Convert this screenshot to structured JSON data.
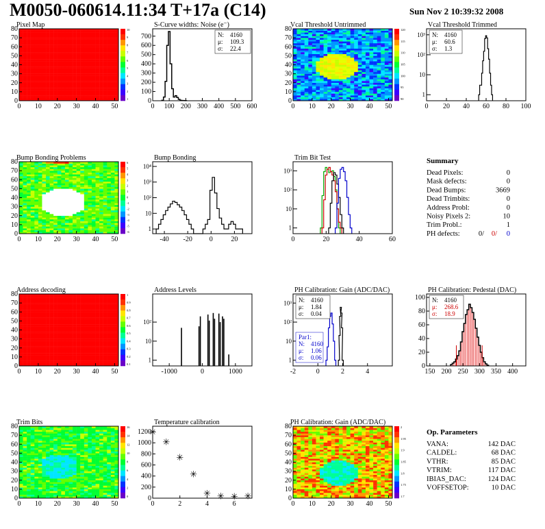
{
  "header": {
    "title": "M0050-060614.11:34 T+17a (C14)",
    "date": "Sun Nov  2 10:39:32 2008"
  },
  "colors": {
    "line": "#000000",
    "blue": "#0000cc",
    "red": "#cc0000",
    "green": "#00aa00"
  },
  "chart_data": [
    {
      "id": "pixel-map",
      "type": "heatmap",
      "title": "Pixel Map",
      "xticks": [
        0,
        10,
        20,
        30,
        40,
        50
      ],
      "yticks": [
        0,
        10,
        20,
        30,
        40,
        50,
        60,
        70,
        80
      ],
      "palette": "rainbow",
      "uniform_color": "red",
      "zmax": "10",
      "zticks": [
        "10",
        "9",
        "8",
        "7",
        "6",
        "5",
        "4",
        "3",
        "2",
        "1"
      ]
    },
    {
      "id": "scurve",
      "type": "histogram",
      "title": "S-Curve widths: Noise (e⁻)",
      "xticks": [
        0,
        100,
        200,
        300,
        400,
        500,
        600
      ],
      "xlim": [
        0,
        600
      ],
      "yticks": [
        0,
        100,
        200,
        300,
        400,
        500,
        600,
        700
      ],
      "ylim": [
        0,
        780
      ],
      "stats": [
        {
          "label": "N:",
          "value": "4160"
        },
        {
          "label": "μ:",
          "value": "109.3"
        },
        {
          "label": "σ:",
          "value": "22.4"
        }
      ],
      "x": [
        60,
        70,
        80,
        90,
        100,
        110,
        120,
        130,
        140,
        150,
        160,
        170,
        180,
        190,
        200
      ],
      "y": [
        5,
        40,
        210,
        600,
        750,
        400,
        130,
        40,
        55,
        35,
        15,
        5,
        3,
        2,
        1
      ]
    },
    {
      "id": "vcal-untrimmed",
      "type": "heatmap",
      "title": "Vcal Threshold Untrimmed",
      "xticks": [
        0,
        10,
        20,
        30,
        40,
        50
      ],
      "yticks": [
        0,
        10,
        20,
        30,
        40,
        50,
        60,
        70,
        80
      ],
      "zticks": [
        "120",
        "115",
        "110",
        "105",
        "100",
        "95",
        "90"
      ]
    },
    {
      "id": "vcal-trimmed",
      "type": "histogram",
      "title": "Vcal Threshold Trimmed",
      "log": true,
      "xticks": [
        0,
        20,
        40,
        60,
        80,
        100
      ],
      "xlim": [
        0,
        100
      ],
      "yticks": [
        "1",
        "10",
        "10²",
        "10³"
      ],
      "ylim": [
        0.5,
        2000
      ],
      "stats": [
        {
          "label": "N:",
          "value": "4160"
        },
        {
          "label": "μ:",
          "value": "60.6"
        },
        {
          "label": "σ:",
          "value": "1.3"
        }
      ],
      "x": [
        53,
        54,
        55,
        56,
        57,
        58,
        59,
        60,
        61,
        62,
        63,
        64,
        65,
        66
      ],
      "y": [
        1,
        3,
        3,
        12,
        50,
        150,
        650,
        900,
        700,
        200,
        60,
        12,
        3,
        1
      ]
    },
    {
      "id": "bump-map",
      "type": "heatmap",
      "title": "Bump Bonding Problems",
      "xticks": [
        0,
        10,
        20,
        30,
        40,
        50
      ],
      "yticks": [
        0,
        10,
        20,
        30,
        40,
        50,
        60,
        70,
        80
      ],
      "zticks": [
        "6",
        "5",
        "4",
        "3",
        "2",
        "1",
        "0",
        "-1",
        "-2",
        "-3",
        "-4",
        "-5",
        "-6"
      ]
    },
    {
      "id": "bump-bonding",
      "type": "histogram",
      "title": "Bump Bonding",
      "log": true,
      "xticks": [
        -40,
        -20,
        0,
        20
      ],
      "xlim": [
        -50,
        35
      ],
      "yticks": [
        "1",
        "10",
        "10²",
        "10³",
        "10⁴"
      ],
      "ylim": [
        0.5,
        20000
      ],
      "x": [
        -46,
        -44,
        -42,
        -40,
        -38,
        -36,
        -34,
        -32,
        -30,
        -28,
        -26,
        -24,
        -22,
        -20,
        -18,
        -16,
        -14,
        -12,
        -10,
        -8,
        -6,
        -4,
        -2,
        0,
        2,
        4,
        6,
        8,
        10,
        12,
        14,
        16,
        18,
        20,
        22,
        24,
        26
      ],
      "y": [
        1,
        2,
        4,
        8,
        15,
        25,
        40,
        60,
        50,
        35,
        25,
        15,
        8,
        4,
        2,
        1,
        0,
        0,
        0,
        0,
        1,
        2,
        4,
        300,
        2000,
        200,
        20,
        5,
        2,
        1,
        1,
        2,
        3,
        2,
        1,
        1,
        1
      ]
    },
    {
      "id": "trim-bit-test",
      "type": "histogram",
      "title": "Trim Bit Test",
      "log": true,
      "xticks": [
        0,
        20,
        40,
        60
      ],
      "xlim": [
        0,
        60
      ],
      "yticks": [
        "1",
        "10",
        "10²",
        "10³"
      ],
      "ylim": [
        0.5,
        3000
      ],
      "series": [
        {
          "name": "",
          "color": "#00aa00",
          "x": [
            17,
            18,
            19,
            20,
            21,
            22,
            23,
            24,
            25,
            26,
            27,
            28
          ],
          "y": [
            1,
            50,
            900,
            1500,
            1200,
            800,
            900,
            1000,
            500,
            100,
            10,
            1
          ]
        },
        {
          "name": "",
          "color": "#cc0000",
          "x": [
            18,
            19,
            20,
            21,
            22,
            23,
            24,
            25,
            26,
            27,
            28,
            29
          ],
          "y": [
            1,
            30,
            600,
            1200,
            1500,
            900,
            600,
            300,
            80,
            10,
            2,
            1
          ]
        },
        {
          "name": "",
          "color": "#000000",
          "x": [
            22,
            23,
            24,
            25,
            26,
            27,
            28,
            29,
            30
          ],
          "y": [
            1,
            20,
            300,
            800,
            600,
            200,
            40,
            5,
            1
          ]
        },
        {
          "name": "",
          "color": "#0000cc",
          "x": [
            26,
            27,
            28,
            29,
            30,
            31,
            32,
            33,
            34,
            35
          ],
          "y": [
            1,
            20,
            400,
            1200,
            1500,
            900,
            300,
            40,
            5,
            1
          ]
        }
      ]
    },
    {
      "id": "summary",
      "type": "table",
      "title": "Summary",
      "rows": [
        {
          "label": "Dead Pixels:",
          "value": "0"
        },
        {
          "label": "Mask defects:",
          "value": "0"
        },
        {
          "label": "Dead Bumps:",
          "value": "3669"
        },
        {
          "label": "Dead Trimbits:",
          "value": "0"
        },
        {
          "label": "Address Probl:",
          "value": "0"
        },
        {
          "label": "Noisy Pixels 2:",
          "value": "10"
        },
        {
          "label": "Trim Probl.:",
          "value": "1"
        }
      ],
      "ph_defects": {
        "label": "PH defects:",
        "values": [
          "0/",
          "0/",
          "0"
        ]
      }
    },
    {
      "id": "address-map",
      "type": "heatmap",
      "title": "Address decoding",
      "xticks": [
        0,
        10,
        20,
        30,
        40,
        50
      ],
      "yticks": [
        0,
        10,
        20,
        30,
        40,
        50,
        60,
        70,
        80
      ],
      "uniform_color": "red",
      "zticks": [
        "1",
        "0.9",
        "0.8",
        "0.7",
        "0.6",
        "0.5",
        "0.4",
        "0.3",
        "0.2",
        "0.1"
      ]
    },
    {
      "id": "address-levels",
      "type": "histogram",
      "title": "Address Levels",
      "log": true,
      "xticks": [
        -1000,
        0,
        1000
      ],
      "xlim": [
        -1500,
        1500
      ],
      "yticks": [
        "1",
        "10",
        "10²"
      ],
      "ylim": [
        0.5,
        3000
      ],
      "x": [
        -630,
        -100,
        -60,
        170,
        210,
        330,
        370,
        500,
        540,
        610,
        650,
        800
      ],
      "y": [
        50,
        60,
        200,
        250,
        120,
        300,
        150,
        280,
        100,
        200,
        150,
        2
      ]
    },
    {
      "id": "ph-gain",
      "type": "histogram",
      "title": "PH Calibration: Gain (ADC/DAC)",
      "log": true,
      "xticks": [
        -2,
        0,
        2,
        4
      ],
      "xlim": [
        -2,
        6
      ],
      "yticks": [
        "1",
        "10",
        "10²",
        "10³"
      ],
      "ylim": [
        0.5,
        3000
      ],
      "stats": [
        {
          "label": "N:",
          "value": "4160"
        },
        {
          "label": "μ:",
          "value": "1.84"
        },
        {
          "label": "σ:",
          "value": "0.04"
        }
      ],
      "stats2": [
        {
          "label": "Par1:",
          "value": ""
        },
        {
          "label": "N:",
          "value": "4160"
        },
        {
          "label": "μ:",
          "value": "1.06"
        },
        {
          "label": "σ:",
          "value": "0.06"
        }
      ],
      "series": [
        {
          "name": "",
          "color": "#0000cc",
          "x": [
            0.7,
            0.8,
            0.9,
            1.0,
            1.1,
            1.2,
            1.3,
            1.4
          ],
          "y": [
            1,
            5,
            50,
            200,
            300,
            80,
            10,
            1
          ]
        },
        {
          "name": "",
          "color": "#000000",
          "x": [
            1.7,
            1.75,
            1.8,
            1.85,
            1.9,
            1.95,
            2.0
          ],
          "y": [
            1,
            20,
            200,
            600,
            300,
            50,
            1
          ]
        }
      ]
    },
    {
      "id": "ph-pedestal",
      "type": "histogram",
      "title": "PH Calibration: Pedestal (DAC)",
      "xticks": [
        150,
        200,
        250,
        300,
        350,
        400
      ],
      "xlim": [
        140,
        440
      ],
      "yticks": [
        0,
        20,
        40,
        60,
        80,
        100
      ],
      "ylim": [
        0,
        105
      ],
      "stats": [
        {
          "label": "N:",
          "value": "4160"
        },
        {
          "label": "μ:",
          "value": "268.6"
        },
        {
          "label": "σ:",
          "value": "18.9"
        }
      ],
      "x": [
        215,
        220,
        225,
        230,
        235,
        240,
        245,
        250,
        255,
        260,
        265,
        270,
        275,
        280,
        285,
        290,
        295,
        300,
        305,
        310,
        315,
        320,
        325
      ],
      "y": [
        2,
        4,
        6,
        10,
        15,
        22,
        35,
        50,
        62,
        75,
        82,
        90,
        85,
        78,
        68,
        55,
        42,
        30,
        20,
        12,
        6,
        3,
        1
      ]
    },
    {
      "id": "trim-bits",
      "type": "heatmap",
      "title": "Trim Bits",
      "xticks": [
        0,
        10,
        20,
        30,
        40,
        50
      ],
      "yticks": [
        0,
        10,
        20,
        30,
        40,
        50,
        60,
        70,
        80
      ],
      "zticks": [
        "16",
        "14",
        "12",
        "10",
        "8",
        "6",
        "4",
        "2",
        "0"
      ]
    },
    {
      "id": "temperature",
      "type": "scatter",
      "title": "Temperature calibration",
      "xticks": [
        0,
        2,
        4,
        6
      ],
      "xlim": [
        0,
        7.3
      ],
      "yticks": [
        0,
        200,
        400,
        600,
        800,
        1000,
        1200
      ],
      "ylim": [
        0,
        1300
      ],
      "x": [
        0,
        1,
        2,
        3,
        4,
        5,
        6,
        7
      ],
      "y": [
        1200,
        1020,
        740,
        440,
        95,
        45,
        40,
        45
      ]
    },
    {
      "id": "ph-gain-map",
      "type": "heatmap",
      "title": "PH Calibration: Gain (ADC/DAC)",
      "xticks": [
        0,
        10,
        20,
        30,
        40,
        50
      ],
      "yticks": [
        0,
        10,
        20,
        30,
        40,
        50,
        60,
        70,
        80
      ],
      "zticks": [
        "2",
        "1.95",
        "1.9",
        "1.85",
        "1.8",
        "1.75",
        "1.7"
      ]
    },
    {
      "id": "op-params",
      "type": "table",
      "title": "Op. Parameters",
      "rows": [
        {
          "label": "VANA:",
          "value": "142 DAC"
        },
        {
          "label": "CALDEL:",
          "value": "68 DAC"
        },
        {
          "label": "VTHR:",
          "value": "85 DAC"
        },
        {
          "label": "VTRIM:",
          "value": "117 DAC"
        },
        {
          "label": "IBIAS_DAC:",
          "value": "124 DAC"
        },
        {
          "label": "VOFFSETOP:",
          "value": "10 DAC"
        }
      ]
    }
  ]
}
